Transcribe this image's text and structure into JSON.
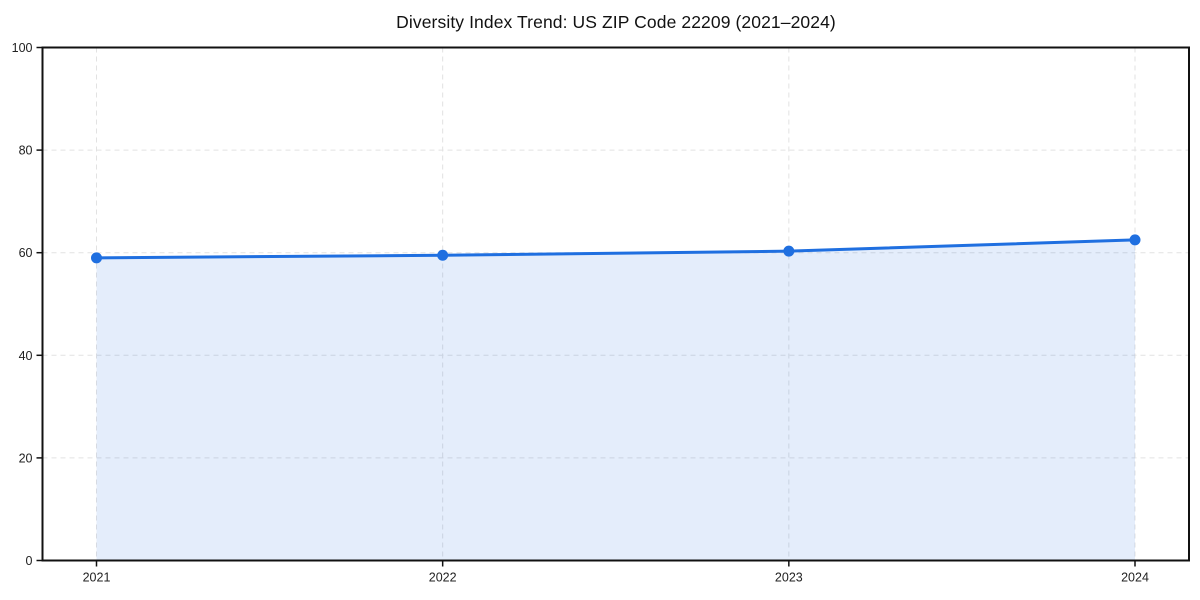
{
  "chart_data": {
    "type": "line",
    "title": "Diversity Index Trend: US ZIP Code 22209 (2021–2024)",
    "x": [
      "2021",
      "2022",
      "2023",
      "2024"
    ],
    "series": [
      {
        "name": "Diversity Index",
        "values": [
          59.0,
          59.5,
          60.3,
          62.5
        ]
      }
    ],
    "xlabel": "",
    "ylabel": "",
    "ylim": [
      0,
      100
    ],
    "yticks": [
      0,
      20,
      40,
      60,
      80,
      100
    ],
    "grid": "dashed, horizontal at y-ticks and vertical at each year",
    "legend_position": "none",
    "area_fill": true,
    "colors": {
      "line": "#1f6fe0",
      "fill": "#1f6fe0",
      "fill_opacity": "0.12",
      "grid": "#e2e2e2",
      "spine": "#111111",
      "tick_text": "#222222",
      "title_text": "#111111",
      "background": "#ffffff"
    }
  }
}
